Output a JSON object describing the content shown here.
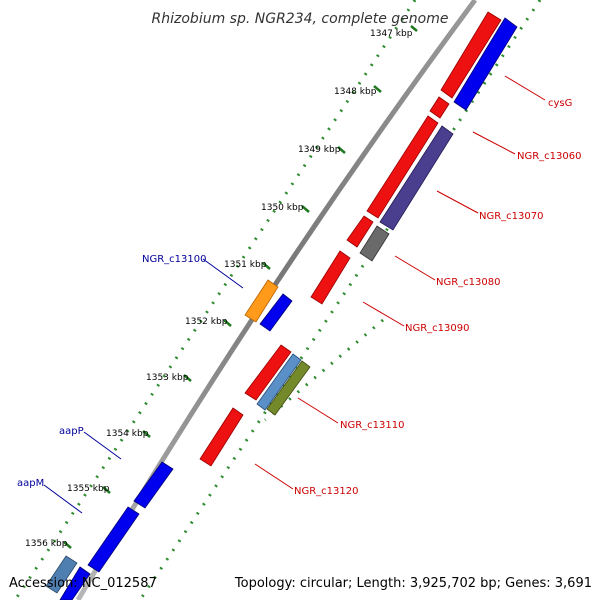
{
  "title": "Rhizobium sp. NGR234, complete genome",
  "ticks": [
    "1347 kbp",
    "1348 kbp",
    "1349 kbp",
    "1350 kbp",
    "1351 kbp",
    "1352 kbp",
    "1353 kbp",
    "1354 kbp",
    "1355 kbp",
    "1356 kbp"
  ],
  "genes": [
    {
      "label": "cysG",
      "color": "#cc0000"
    },
    {
      "label": "NGR_c13060",
      "color": "#cc0000"
    },
    {
      "label": "NGR_c13070",
      "color": "#cc0000"
    },
    {
      "label": "NGR_c13080",
      "color": "#cc0000"
    },
    {
      "label": "NGR_c13090",
      "color": "#cc0000"
    },
    {
      "label": "NGR_c13100",
      "color": "#000099"
    },
    {
      "label": "NGR_c13110",
      "color": "#cc0000"
    },
    {
      "label": "NGR_c13120",
      "color": "#cc0000"
    },
    {
      "label": "aapP",
      "color": "#000099"
    },
    {
      "label": "aapM",
      "color": "#000099"
    }
  ],
  "footer": {
    "accession": "Accession: NC_012587",
    "topology": "Topology: circular; Length: 3,925,702 bp; Genes: 3,691"
  }
}
